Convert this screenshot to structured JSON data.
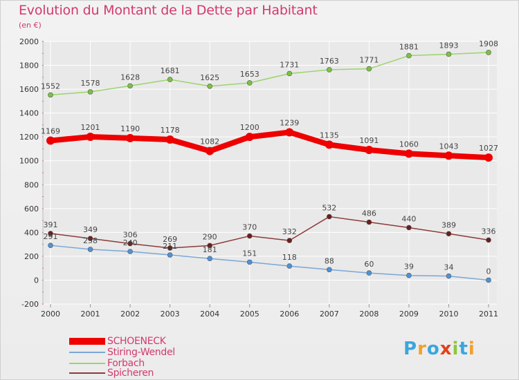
{
  "header": {
    "title": "Evolution du Montant de la Dette par Habitant",
    "subtitle": "(en €)"
  },
  "colors": {
    "title": "#d2396b",
    "grid": "#ffffff",
    "axis_text": "#333333",
    "label_text": "#444444"
  },
  "logo": {
    "text": "Proxiti",
    "letters": [
      "P",
      "r",
      "o",
      "x",
      "i",
      "t",
      "i"
    ],
    "colors": [
      "#3aa6dd",
      "#f2a02a",
      "#3aa6dd",
      "#e2401f",
      "#8cc63f",
      "#3aa6dd",
      "#f2a02a"
    ]
  },
  "chart_data": {
    "type": "line",
    "categories": [
      "2000",
      "2001",
      "2002",
      "2003",
      "2004",
      "2005",
      "2006",
      "2007",
      "2008",
      "2009",
      "2010",
      "2011"
    ],
    "ylim": [
      -200,
      2000
    ],
    "yticks": [
      -200,
      0,
      200,
      400,
      600,
      800,
      1000,
      1200,
      1400,
      1600,
      1800,
      2000
    ],
    "grid": true,
    "legend_position": "bottom-left",
    "series": [
      {
        "name": "SCHOENECK",
        "values": [
          1169,
          1201,
          1190,
          1178,
          1082,
          1200,
          1239,
          1135,
          1091,
          1060,
          1043,
          1027
        ],
        "color": "#ee0000",
        "marker": "#ee0000",
        "labels": [
          "1169",
          "1201",
          "1190",
          "1178",
          "1082",
          "1200",
          "1239",
          "1135",
          "1091",
          "1060",
          "1043",
          "1027"
        ]
      },
      {
        "name": "Stiring-Wendel",
        "values": [
          291,
          258,
          240,
          211,
          181,
          151,
          118,
          88,
          60,
          39,
          34,
          0
        ],
        "color": "#7aa6d6",
        "marker": "#4d93d6",
        "labels": [
          "291",
          "258",
          "240",
          "211",
          "181",
          "151",
          "118",
          "88",
          "60",
          "39",
          "34",
          "0"
        ]
      },
      {
        "name": "Forbach",
        "values": [
          1552,
          1578,
          1628,
          1681,
          1625,
          1653,
          1731,
          1763,
          1771,
          1881,
          1893,
          1908
        ],
        "color": "#9ad46a",
        "marker": "#7cc242",
        "labels": [
          "1552",
          "1578",
          "1628",
          "1681",
          "1625",
          "1653",
          "1731",
          "1763",
          "1771",
          "1881",
          "1893",
          "1908"
        ]
      },
      {
        "name": "Spicheren",
        "values": [
          391,
          349,
          306,
          269,
          290,
          370,
          332,
          532,
          486,
          440,
          389,
          336
        ],
        "color": "#8b3a3a",
        "marker": "#6b1f1f",
        "labels": [
          "391",
          "349",
          "306",
          "269",
          "290",
          "370",
          "332",
          "532",
          "486",
          "440",
          "389",
          "336"
        ]
      }
    ]
  }
}
